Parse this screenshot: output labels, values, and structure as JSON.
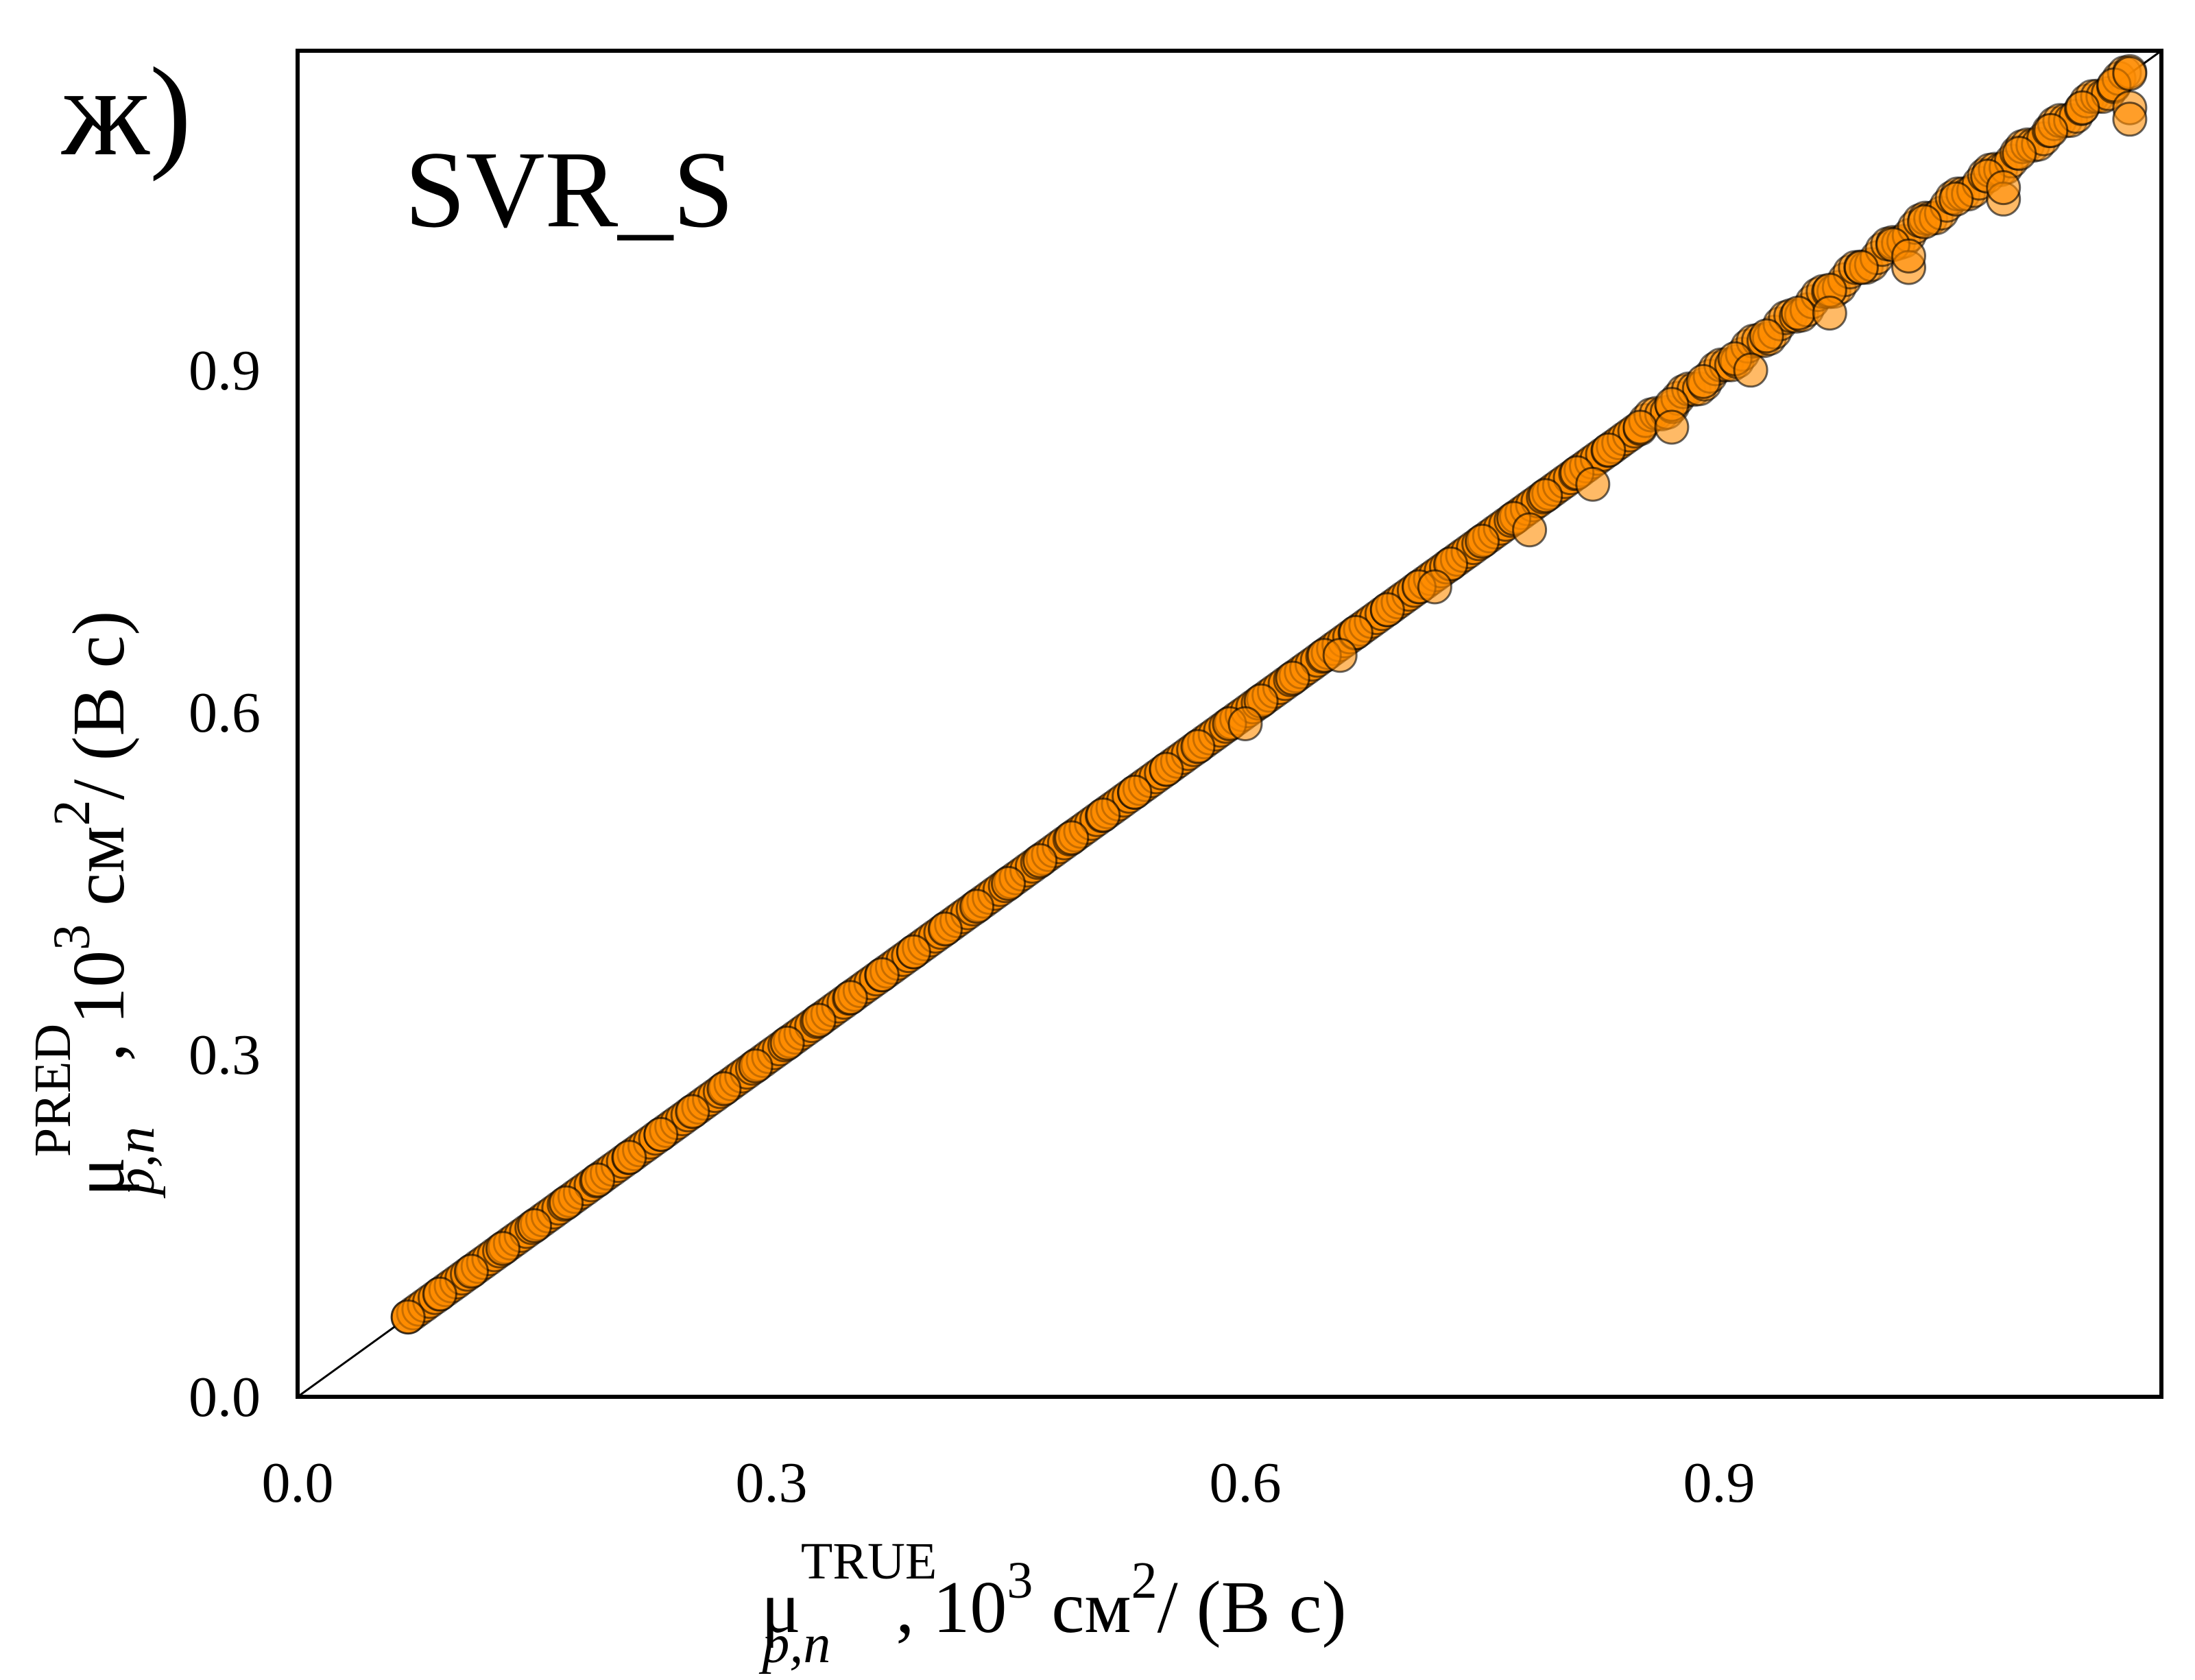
{
  "panel_label": "ж)",
  "model_label": "SVR_S",
  "chart_data": {
    "type": "scatter",
    "title": "SVR_S",
    "xlabel": {
      "symbol": "μ",
      "superscript": "TRUE",
      "subscript": "p,n",
      "unit_prefix": ",  10",
      "unit_exp": "3",
      "unit_mid": " см",
      "unit_exp2": "2",
      "unit_suffix": "/ (В с)"
    },
    "ylabel": {
      "symbol": "μ",
      "superscript": "PRED",
      "subscript": "p,n",
      "unit_prefix": ",  10",
      "unit_exp": "3",
      "unit_mid": " см",
      "unit_exp2": "2",
      "unit_suffix": "/ (В с)"
    },
    "xlim": [
      0.0,
      1.18
    ],
    "ylim": [
      0.0,
      1.18
    ],
    "x_ticks": [
      "0.0",
      "0.3",
      "0.6",
      "0.9"
    ],
    "y_ticks": [
      "0.0",
      "0.3",
      "0.6",
      "0.9"
    ],
    "grid": false,
    "reference_line": {
      "from": [
        0.0,
        0.0
      ],
      "to": [
        1.18,
        1.18
      ]
    },
    "marker_color": "#ff8c00",
    "marker_edge_color": "#000000",
    "series": [
      {
        "x_range": [
          0.07,
          1.16
        ],
        "points": [
          [
            0.07,
            0.07
          ],
          [
            0.09,
            0.09
          ],
          [
            0.11,
            0.11
          ],
          [
            0.13,
            0.13
          ],
          [
            0.15,
            0.15
          ],
          [
            0.17,
            0.17
          ],
          [
            0.19,
            0.19
          ],
          [
            0.21,
            0.21
          ],
          [
            0.23,
            0.23
          ],
          [
            0.25,
            0.25
          ],
          [
            0.27,
            0.27
          ],
          [
            0.29,
            0.29
          ],
          [
            0.31,
            0.31
          ],
          [
            0.33,
            0.33
          ],
          [
            0.35,
            0.35
          ],
          [
            0.37,
            0.37
          ],
          [
            0.39,
            0.39
          ],
          [
            0.41,
            0.41
          ],
          [
            0.43,
            0.43
          ],
          [
            0.45,
            0.45
          ],
          [
            0.47,
            0.47
          ],
          [
            0.49,
            0.49
          ],
          [
            0.51,
            0.51
          ],
          [
            0.53,
            0.53
          ],
          [
            0.55,
            0.55
          ],
          [
            0.57,
            0.57
          ],
          [
            0.59,
            0.59
          ],
          [
            0.61,
            0.61
          ],
          [
            0.63,
            0.63
          ],
          [
            0.65,
            0.65
          ],
          [
            0.67,
            0.67
          ],
          [
            0.69,
            0.69
          ],
          [
            0.71,
            0.71
          ],
          [
            0.73,
            0.73
          ],
          [
            0.75,
            0.75
          ],
          [
            0.77,
            0.77
          ],
          [
            0.79,
            0.79
          ],
          [
            0.81,
            0.81
          ],
          [
            0.83,
            0.83
          ],
          [
            0.85,
            0.85
          ],
          [
            0.87,
            0.87
          ],
          [
            0.89,
            0.89
          ],
          [
            0.91,
            0.91
          ],
          [
            0.93,
            0.93
          ],
          [
            0.95,
            0.95
          ],
          [
            0.97,
            0.97
          ],
          [
            0.99,
            0.99
          ],
          [
            1.01,
            1.01
          ],
          [
            1.03,
            1.03
          ],
          [
            1.05,
            1.05
          ],
          [
            1.07,
            1.07
          ],
          [
            1.09,
            1.09
          ],
          [
            1.11,
            1.11
          ],
          [
            1.13,
            1.13
          ],
          [
            1.15,
            1.15
          ],
          [
            1.16,
            1.16
          ],
          [
            1.16,
            1.13
          ],
          [
            1.16,
            1.12
          ],
          [
            1.08,
            1.05
          ],
          [
            1.08,
            1.06
          ],
          [
            1.02,
            0.99
          ],
          [
            1.02,
            1.0
          ],
          [
            0.97,
            0.95
          ],
          [
            0.92,
            0.9
          ],
          [
            0.87,
            0.85
          ],
          [
            0.82,
            0.8
          ],
          [
            0.78,
            0.76
          ],
          [
            0.72,
            0.71
          ],
          [
            0.66,
            0.65
          ],
          [
            0.6,
            0.59
          ]
        ]
      }
    ]
  }
}
